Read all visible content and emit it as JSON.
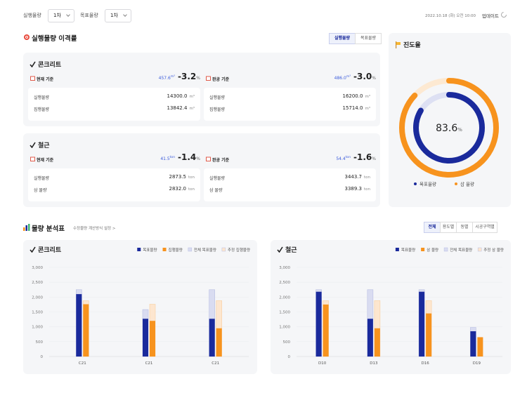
{
  "topbar": {
    "filters": [
      {
        "label": "실행물량",
        "value": "1차"
      },
      {
        "label": "목표물량",
        "value": "1차"
      }
    ],
    "datetime": "2022.10.18 (화) 오전 10:00",
    "update": "업데이트"
  },
  "deviation": {
    "title": "실행물량 이격률",
    "toggle": [
      "실행물량",
      "목표물량"
    ],
    "cards": [
      {
        "title": "콘크리트",
        "panels": [
          {
            "label": "현재 기준",
            "amount": "457.6",
            "amount_unit": "m³",
            "rate": "-3.2",
            "rate_unit": "%",
            "rows": [
              {
                "label": "실행물량",
                "value": "14300.0",
                "unit": "m³"
              },
              {
                "label": "집행물량",
                "value": "13842.4",
                "unit": "m³"
              }
            ]
          },
          {
            "label": "완공 기준",
            "amount": "486.0",
            "amount_unit": "m³",
            "rate": "-3.0",
            "rate_unit": "%",
            "rows": [
              {
                "label": "실행물량",
                "value": "16200.0",
                "unit": "m³"
              },
              {
                "label": "집행물량",
                "value": "15714.0",
                "unit": "m³"
              }
            ]
          }
        ]
      },
      {
        "title": "철근",
        "panels": [
          {
            "label": "현재 기준",
            "amount": "41.5",
            "amount_unit": "ton",
            "rate": "-1.4",
            "rate_unit": "%",
            "rows": [
              {
                "label": "실행물량",
                "value": "2873.5",
                "unit": "ton"
              },
              {
                "label": "삼 물량",
                "value": "2832.0",
                "unit": "ton"
              }
            ]
          },
          {
            "label": "완공 기준",
            "amount": "54.4",
            "amount_unit": "ton",
            "rate": "-1.6",
            "rate_unit": "%",
            "rows": [
              {
                "label": "실행물량",
                "value": "3443.7",
                "unit": "ton"
              },
              {
                "label": "삼 물량",
                "value": "3389.3",
                "unit": "ton"
              }
            ]
          }
        ]
      }
    ]
  },
  "progress": {
    "title": "진도율",
    "value": "83.6",
    "unit": "%",
    "rings": [
      {
        "name": "목표물량",
        "color": "#1a2a9c",
        "value": 83.6
      },
      {
        "name": "삼 물량",
        "color": "#f7931e",
        "value": 87
      }
    ]
  },
  "analysis": {
    "title": "물량 분석표",
    "link": "수정물량 계산방식 설정 >",
    "tabs": [
      "전체",
      "용도별",
      "동별",
      "시공구역별"
    ]
  },
  "chart_data": [
    {
      "type": "bar",
      "title": "콘크리트",
      "categories": [
        "C21",
        "C21",
        "C21"
      ],
      "series": [
        {
          "name": "목표물량",
          "color": "#1a2a9c",
          "values": [
            2100,
            1270,
            1270
          ]
        },
        {
          "name": "집행물량",
          "color": "#f7931e",
          "values": [
            1760,
            1200,
            950
          ]
        },
        {
          "name": "전체 목표물량",
          "color": "#d9dcf1",
          "values": [
            2250,
            1580,
            2250
          ]
        },
        {
          "name": "추정 집행물량",
          "color": "#fde6cf",
          "values": [
            1880,
            1760,
            1880
          ]
        }
      ],
      "ylim": [
        0,
        3000
      ],
      "yticks": [
        0,
        500,
        {
          "value": 1000,
          "label": "1,000"
        },
        {
          "value": 1500,
          "label": "1,500"
        },
        {
          "value": 2000,
          "label": "2,000"
        },
        {
          "value": 2500,
          "label": "2,500"
        },
        {
          "value": 3000,
          "label": "3,000"
        }
      ],
      "grid": true
    },
    {
      "type": "bar",
      "title": "철근",
      "categories": [
        "D10",
        "D13",
        "D16",
        "D19"
      ],
      "series": [
        {
          "name": "목표물량",
          "color": "#1a2a9c",
          "values": [
            2180,
            1270,
            2180,
            850
          ]
        },
        {
          "name": "삼 물량",
          "color": "#f7931e",
          "values": [
            1750,
            950,
            1450,
            650
          ]
        },
        {
          "name": "전체 목표물량",
          "color": "#d9dcf1",
          "values": [
            2250,
            2250,
            2250,
            980
          ]
        },
        {
          "name": "추정 삼 물량",
          "color": "#fde6cf",
          "values": [
            1880,
            1880,
            1880,
            null
          ]
        }
      ],
      "ylim": [
        0,
        3000
      ],
      "yticks": [
        0,
        500,
        {
          "value": 1000,
          "label": "1,000"
        },
        {
          "value": 1500,
          "label": "1,500"
        },
        {
          "value": 2000,
          "label": "2,000"
        },
        {
          "value": 2500,
          "label": "2,500"
        },
        {
          "value": 3000,
          "label": "3,000"
        }
      ],
      "grid": true
    }
  ]
}
